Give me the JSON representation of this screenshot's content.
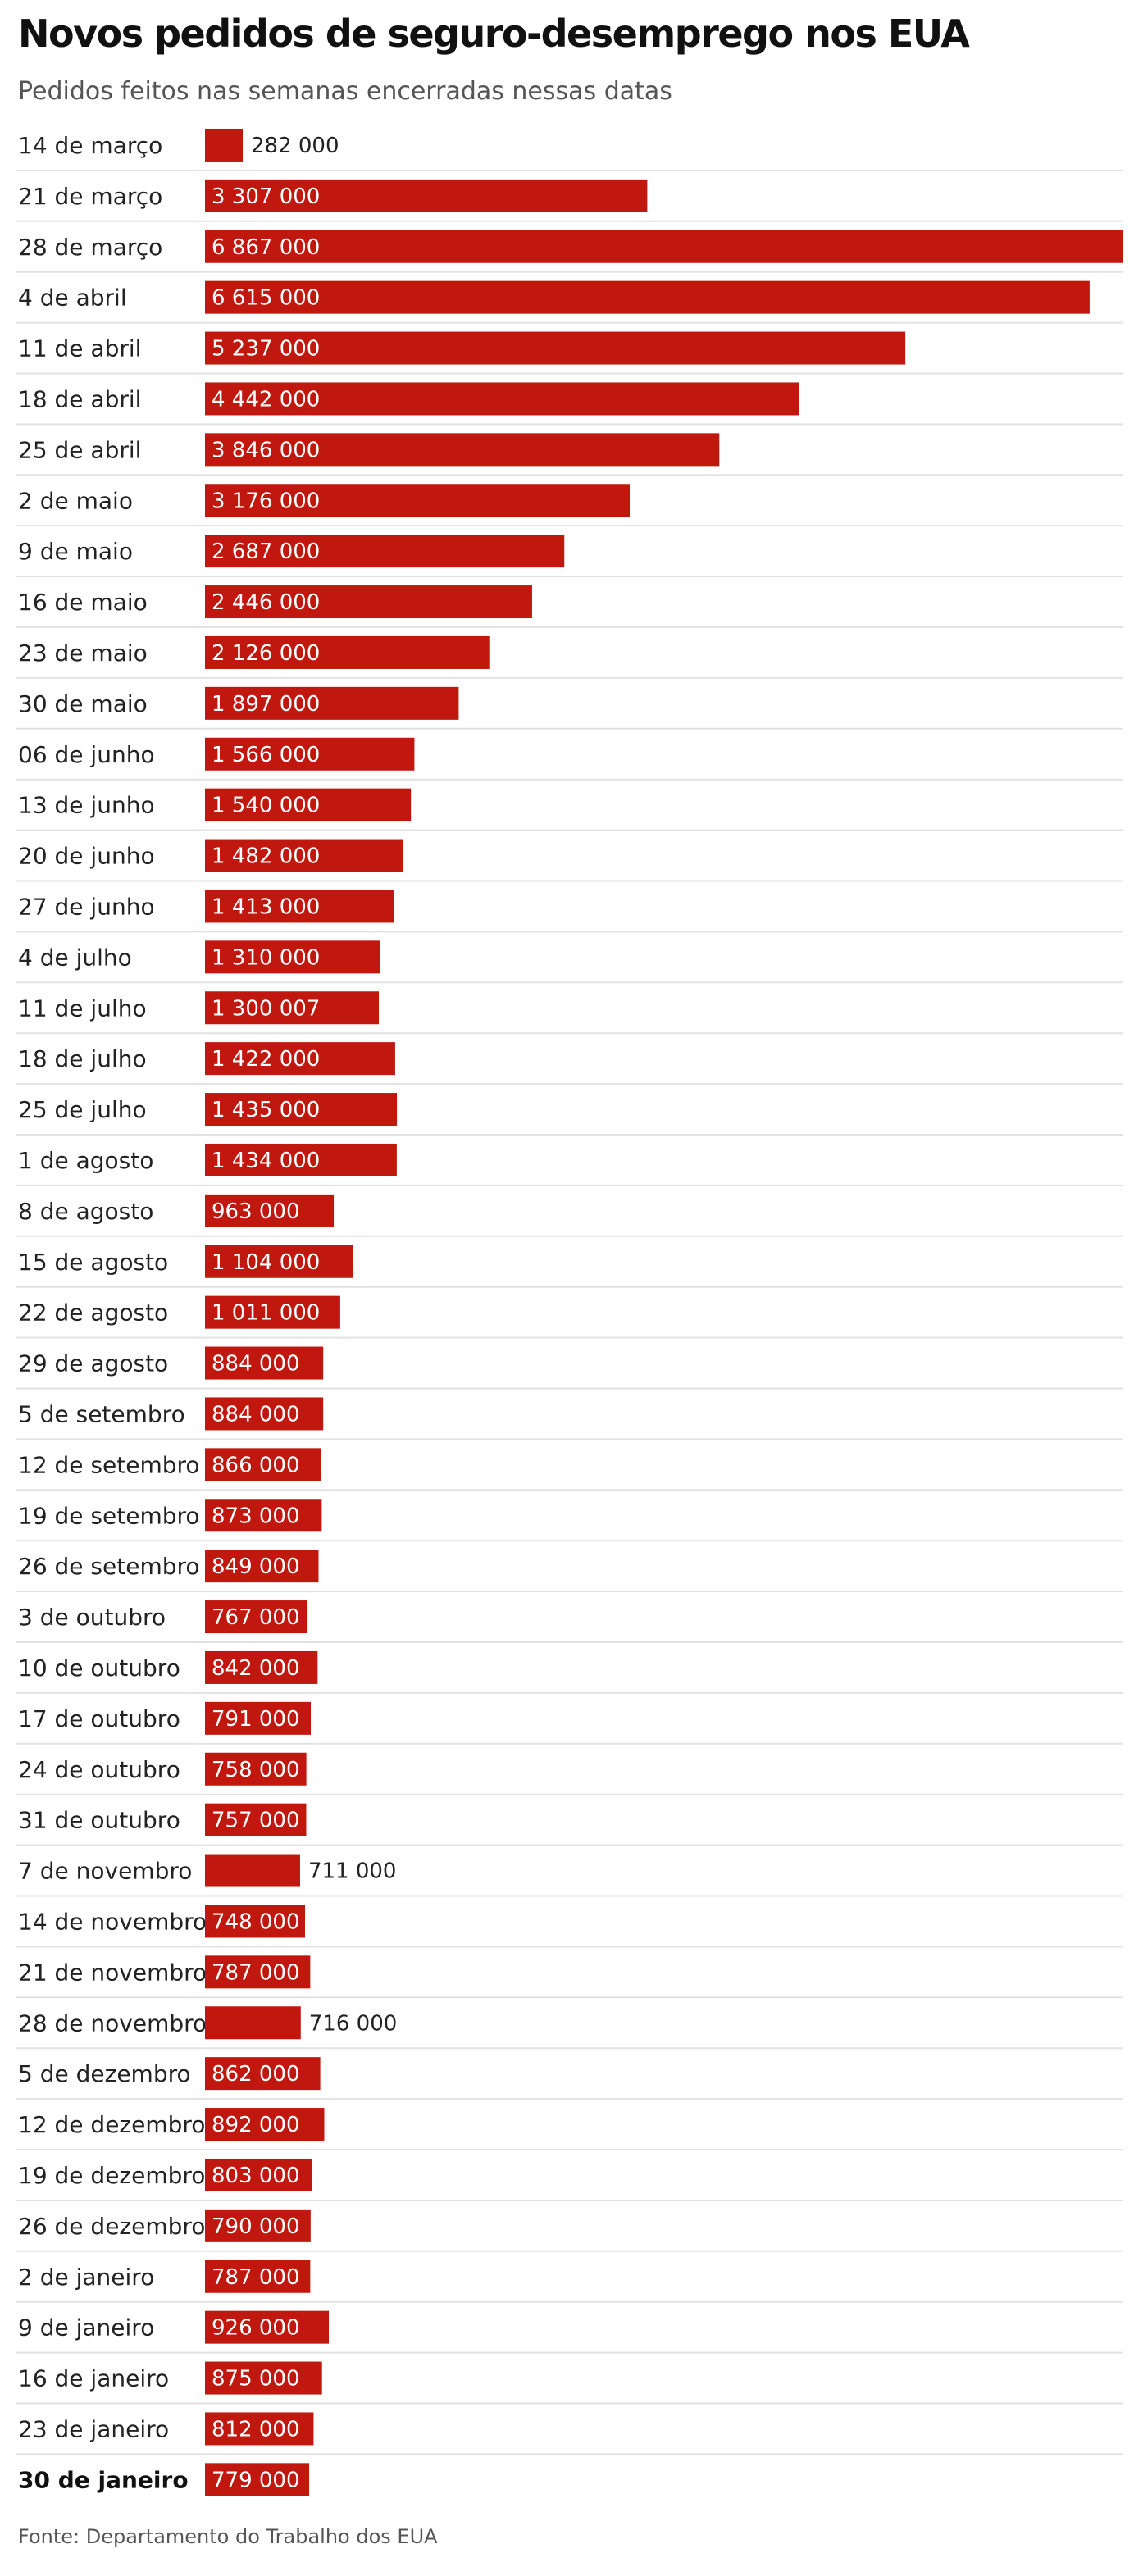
{
  "chart_data": {
    "type": "bar",
    "orientation": "horizontal",
    "title": "Novos pedidos de seguro-desemprego nos EUA",
    "subtitle": "Pedidos feitos nas semanas encerradas nessas datas",
    "source": "Fonte: Departamento do Trabalho dos EUA",
    "bar_color": "#c0180e",
    "xlim": [
      0,
      6867000
    ],
    "highlight_category": "30 de janeiro",
    "categories": [
      "14 de março",
      "21 de março",
      "28 de março",
      "4 de abril",
      "11 de abril",
      "18 de abril",
      "25 de abril",
      "2 de maio",
      "9 de maio",
      "16 de maio",
      "23 de maio",
      "30 de maio",
      "06 de junho",
      "13 de junho",
      "20 de junho",
      "27 de junho",
      "4 de julho",
      "11 de julho",
      "18 de julho",
      "25 de julho",
      "1 de agosto",
      "8 de agosto",
      "15 de agosto",
      "22 de agosto",
      "29 de agosto",
      "5 de setembro",
      "12 de setembro",
      "19 de setembro",
      "26 de setembro",
      "3 de outubro",
      "10 de outubro",
      "17 de outubro",
      "24 de outubro",
      "31 de outubro",
      "7 de novembro",
      "14 de novembro",
      "21 de novembro",
      "28 de novembro",
      "5 de dezembro",
      "12 de dezembro",
      "19 de dezembro",
      "26 de dezembro",
      "2 de janeiro",
      "9 de janeiro",
      "16 de janeiro",
      "23 de janeiro",
      "30 de janeiro"
    ],
    "values": [
      282000,
      3307000,
      6867000,
      6615000,
      5237000,
      4442000,
      3846000,
      3176000,
      2687000,
      2446000,
      2126000,
      1897000,
      1566000,
      1540000,
      1482000,
      1413000,
      1310000,
      1300007,
      1422000,
      1435000,
      1434000,
      963000,
      1104000,
      1011000,
      884000,
      884000,
      866000,
      873000,
      849000,
      767000,
      842000,
      791000,
      758000,
      757000,
      711000,
      748000,
      787000,
      716000,
      862000,
      892000,
      803000,
      790000,
      787000,
      926000,
      875000,
      812000,
      779000
    ],
    "value_labels": [
      "282 000",
      "3 307 000",
      "6 867 000",
      "6 615 000",
      "5 237 000",
      "4 442 000",
      "3 846 000",
      "3 176 000",
      "2 687 000",
      "2 446 000",
      "2 126 000",
      "1 897 000",
      "1 566 000",
      "1 540 000",
      "1 482 000",
      "1 413 000",
      "1 310 000",
      "1 300 007",
      "1 422 000",
      "1 435 000",
      "1 434 000",
      "963 000",
      "1 104 000",
      "1 011 000",
      "884 000",
      "884 000",
      "866 000",
      "873 000",
      "849 000",
      "767 000",
      "842 000",
      "791 000",
      "758 000",
      "757 000",
      "711 000",
      "748 000",
      "787 000",
      "716 000",
      "862 000",
      "892 000",
      "803 000",
      "790 000",
      "787 000",
      "926 000",
      "875 000",
      "812 000",
      "779 000"
    ],
    "label_outside": [
      "14 de março",
      "7 de novembro",
      "28 de novembro"
    ]
  }
}
